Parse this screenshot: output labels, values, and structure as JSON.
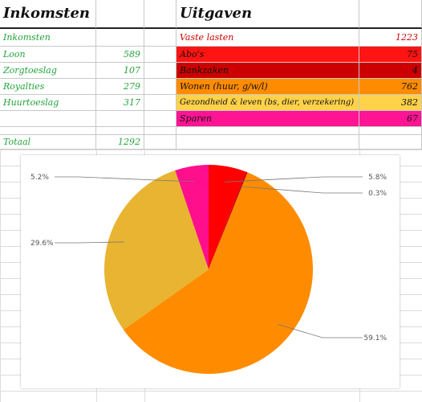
{
  "incomes": {
    "header": "Inkomsten",
    "subheader": "Inkomsten",
    "rows": [
      {
        "label": "Loon",
        "value": "589"
      },
      {
        "label": "Zorgtoeslag",
        "value": "107"
      },
      {
        "label": "Royalties",
        "value": "279"
      },
      {
        "label": "Huurtoeslag",
        "value": "317"
      }
    ],
    "total_label": "Totaal",
    "total_value": "1292"
  },
  "expenses": {
    "header": "Uitgaven",
    "subheader": "Vaste lasten",
    "subheader_value": "1223",
    "rows": [
      {
        "label": "Abo's",
        "value": "75",
        "color": "#ff1414"
      },
      {
        "label": "Bankzaken",
        "value": "4",
        "color": "#cc0000"
      },
      {
        "label": "Wonen (huur, g/w/l)",
        "value": "762",
        "color": "#ff8c00"
      },
      {
        "label": "Gezondheid & leven (bs, dier, verzekering)",
        "value": "382",
        "color": "#ffd24a"
      },
      {
        "label": "Sparen",
        "value": "67",
        "color": "#ff1493"
      }
    ]
  },
  "chart_data": {
    "type": "pie",
    "slices": [
      {
        "label": "5.8%",
        "value": 5.8,
        "color": "#ff0000"
      },
      {
        "label": "0.3%",
        "value": 0.3,
        "color": "#cc0000"
      },
      {
        "label": "59.1%",
        "value": 59.1,
        "color": "#ff8c00"
      },
      {
        "label": "29.6%",
        "value": 29.6,
        "color": "#e8b431"
      },
      {
        "label": "5.2%",
        "value": 5.2,
        "color": "#ff0f8c"
      }
    ]
  }
}
